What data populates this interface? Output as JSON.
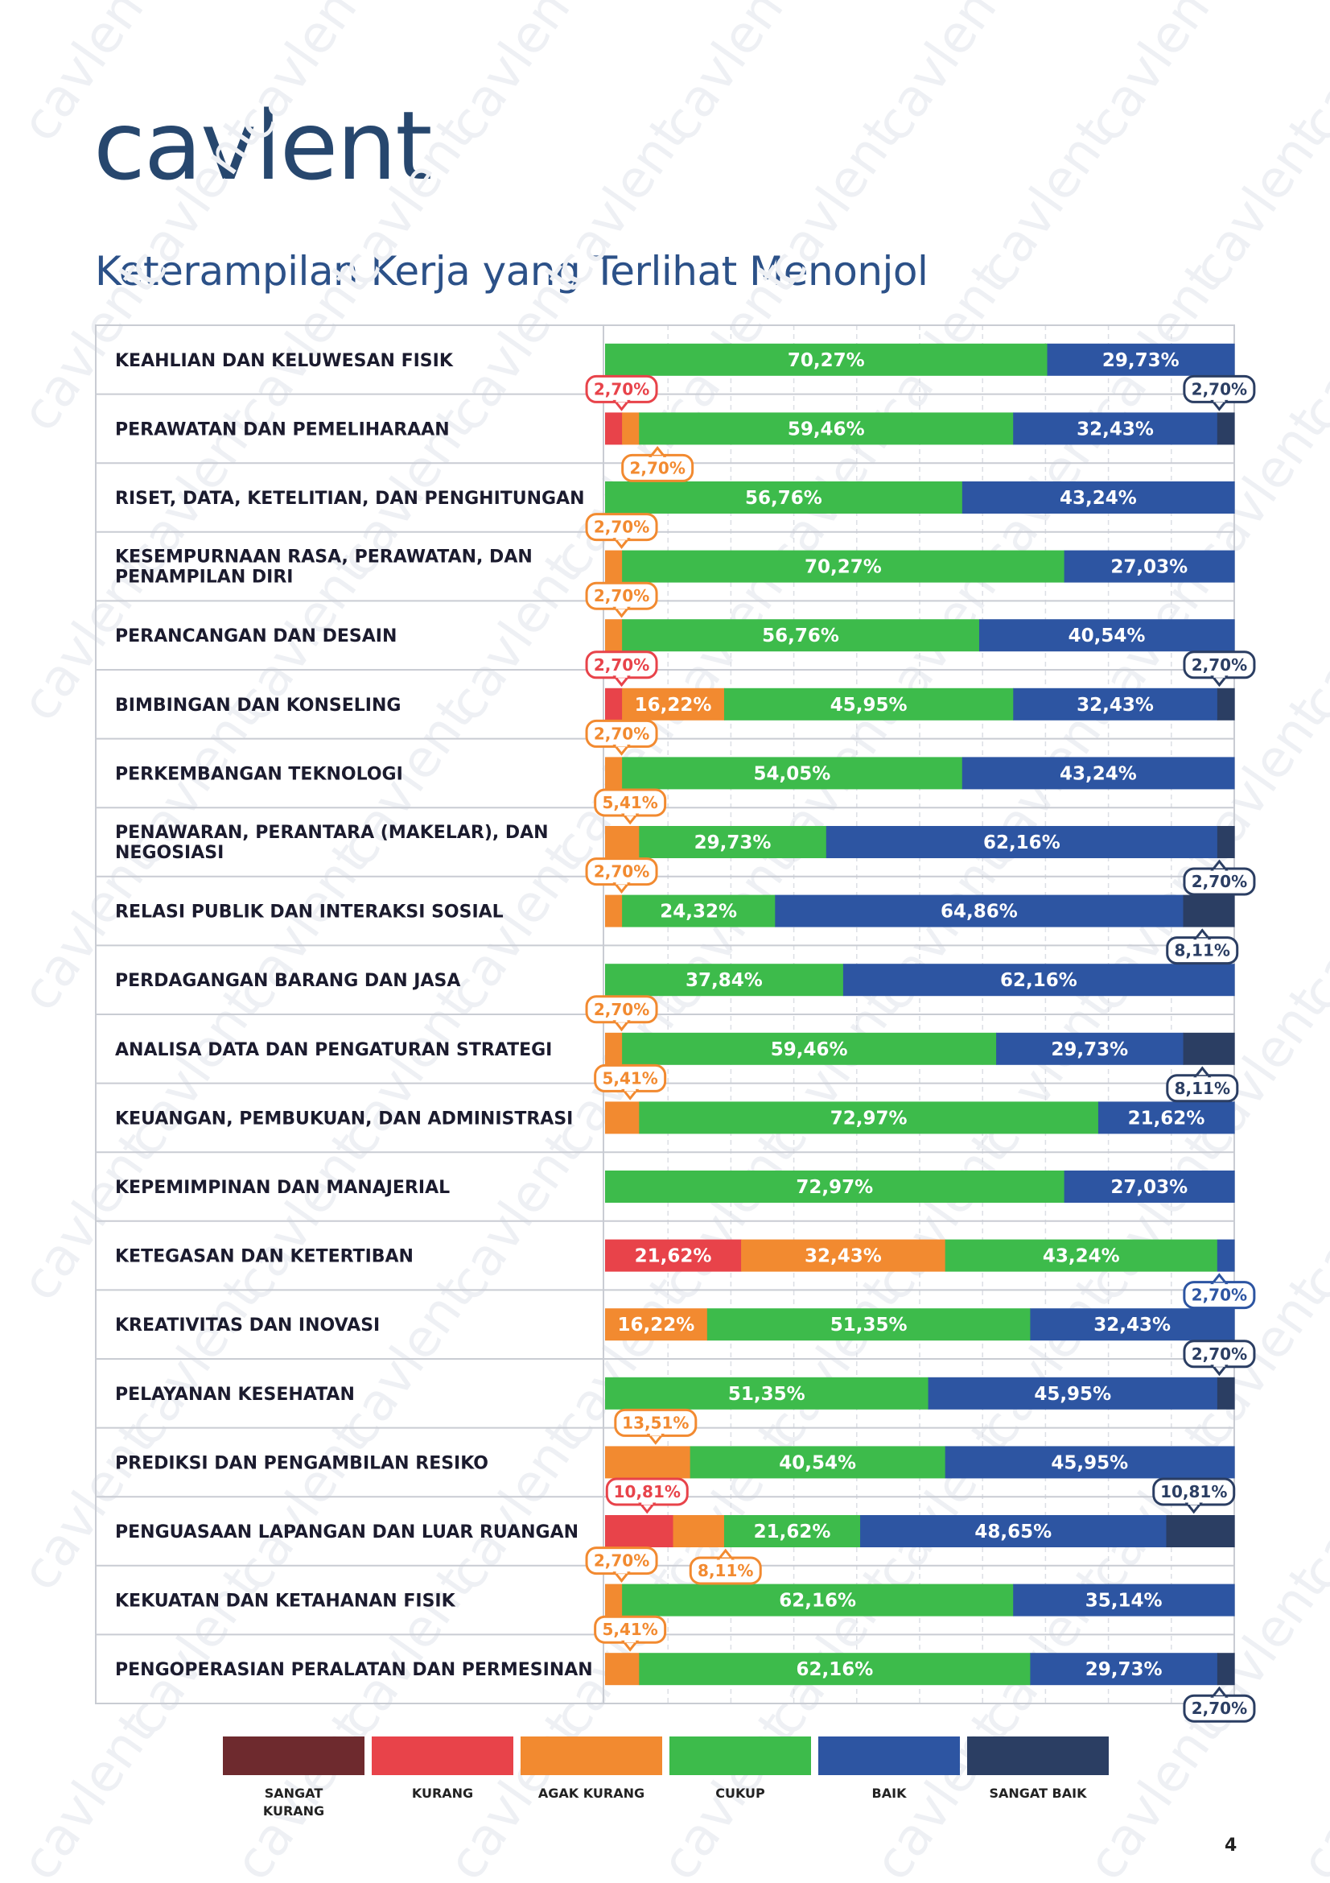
{
  "brand": "cavlent",
  "title": "Keterampilan Kerja yang Terlihat Menonjol",
  "page_number": "4",
  "colors": {
    "sangat_kurang": "#6e2a2e",
    "kurang": "#e8434a",
    "agak_kurang": "#f28a30",
    "cukup": "#3dbb4b",
    "baik": "#2d55a2",
    "sangat_baik": "#2b3e63"
  },
  "chart_data": {
    "type": "bar",
    "orientation": "horizontal",
    "stacked": true,
    "title": "Keterampilan Kerja yang Terlihat Menonjol",
    "xlim": [
      0,
      100
    ],
    "legend": [
      {
        "key": "sangat_kurang",
        "label": "SANGAT KURANG"
      },
      {
        "key": "kurang",
        "label": "KURANG"
      },
      {
        "key": "agak_kurang",
        "label": "AGAK KURANG"
      },
      {
        "key": "cukup",
        "label": "CUKUP"
      },
      {
        "key": "baik",
        "label": "BAIK"
      },
      {
        "key": "sangat_baik",
        "label": "SANGAT BAIK"
      }
    ],
    "categories": [
      {
        "label": "KEAHLIAN DAN KELUWESAN FISIK",
        "segments": [
          {
            "key": "cukup",
            "value": 70.27,
            "label": "70,27%"
          },
          {
            "key": "baik",
            "value": 29.73,
            "label": "29,73%"
          }
        ]
      },
      {
        "label": "PERAWATAN DAN PEMELIHARAAN",
        "segments": [
          {
            "key": "kurang",
            "value": 2.7,
            "label": "2,70%",
            "callout": "tl"
          },
          {
            "key": "agak_kurang",
            "value": 2.7,
            "label": "2,70%",
            "callout": "bl"
          },
          {
            "key": "cukup",
            "value": 59.46,
            "label": "59,46%"
          },
          {
            "key": "baik",
            "value": 32.43,
            "label": "32,43%"
          },
          {
            "key": "sangat_baik",
            "value": 2.7,
            "label": "2,70%",
            "callout": "tr"
          }
        ]
      },
      {
        "label": "RISET, DATA, KETELITIAN, DAN PENGHITUNGAN",
        "segments": [
          {
            "key": "cukup",
            "value": 56.76,
            "label": "56,76%"
          },
          {
            "key": "baik",
            "value": 43.24,
            "label": "43,24%"
          }
        ]
      },
      {
        "label": [
          "KESEMPURNAAN RASA, PERAWATAN, DAN",
          "PENAMPILAN DIRI"
        ],
        "segments": [
          {
            "key": "agak_kurang",
            "value": 2.7,
            "label": "2,70%",
            "callout": "tl"
          },
          {
            "key": "cukup",
            "value": 70.27,
            "label": "70,27%"
          },
          {
            "key": "baik",
            "value": 27.03,
            "label": "27,03%"
          }
        ]
      },
      {
        "label": "PERANCANGAN DAN DESAIN",
        "segments": [
          {
            "key": "agak_kurang",
            "value": 2.7,
            "label": "2,70%",
            "callout": "tl"
          },
          {
            "key": "cukup",
            "value": 56.76,
            "label": "56,76%"
          },
          {
            "key": "baik",
            "value": 40.54,
            "label": "40,54%"
          }
        ]
      },
      {
        "label": "BIMBINGAN DAN KONSELING",
        "segments": [
          {
            "key": "kurang",
            "value": 2.7,
            "label": "2,70%",
            "callout": "tl"
          },
          {
            "key": "agak_kurang",
            "value": 16.22,
            "label": "16,22%"
          },
          {
            "key": "cukup",
            "value": 45.95,
            "label": "45,95%"
          },
          {
            "key": "baik",
            "value": 32.43,
            "label": "32,43%"
          },
          {
            "key": "sangat_baik",
            "value": 2.7,
            "label": "2,70%",
            "callout": "tr"
          }
        ]
      },
      {
        "label": "PERKEMBANGAN TEKNOLOGI",
        "segments": [
          {
            "key": "agak_kurang",
            "value": 2.7,
            "label": "2,70%",
            "callout": "tl"
          },
          {
            "key": "cukup",
            "value": 54.05,
            "label": "54,05%"
          },
          {
            "key": "baik",
            "value": 43.24,
            "label": "43,24%"
          }
        ]
      },
      {
        "label": [
          "PENAWARAN, PERANTARA (MAKELAR), DAN",
          "NEGOSIASI"
        ],
        "segments": [
          {
            "key": "agak_kurang",
            "value": 5.41,
            "label": "5,41%",
            "callout": "tl"
          },
          {
            "key": "cukup",
            "value": 29.73,
            "label": "29,73%"
          },
          {
            "key": "baik",
            "value": 62.16,
            "label": "62,16%"
          },
          {
            "key": "sangat_baik",
            "value": 2.7,
            "label": "2,70%",
            "callout": "br"
          }
        ]
      },
      {
        "label": "RELASI PUBLIK DAN INTERAKSI SOSIAL",
        "segments": [
          {
            "key": "agak_kurang",
            "value": 2.7,
            "label": "2,70%",
            "callout": "tl"
          },
          {
            "key": "cukup",
            "value": 24.32,
            "label": "24,32%"
          },
          {
            "key": "baik",
            "value": 64.86,
            "label": "64,86%"
          },
          {
            "key": "sangat_baik",
            "value": 8.11,
            "label": "8,11%",
            "callout": "br"
          }
        ]
      },
      {
        "label": "PERDAGANGAN BARANG DAN JASA",
        "segments": [
          {
            "key": "cukup",
            "value": 37.84,
            "label": "37,84%"
          },
          {
            "key": "baik",
            "value": 62.16,
            "label": "62,16%"
          }
        ]
      },
      {
        "label": "ANALISA DATA DAN PENGATURAN STRATEGI",
        "segments": [
          {
            "key": "agak_kurang",
            "value": 2.7,
            "label": "2,70%",
            "callout": "tl"
          },
          {
            "key": "cukup",
            "value": 59.46,
            "label": "59,46%"
          },
          {
            "key": "baik",
            "value": 29.73,
            "label": "29,73%"
          },
          {
            "key": "sangat_baik",
            "value": 8.11,
            "label": "8,11%",
            "callout": "br"
          }
        ]
      },
      {
        "label": "KEUANGAN, PEMBUKUAN, DAN ADMINISTRASI",
        "segments": [
          {
            "key": "agak_kurang",
            "value": 5.41,
            "label": "5,41%",
            "callout": "tl"
          },
          {
            "key": "cukup",
            "value": 72.97,
            "label": "72,97%"
          },
          {
            "key": "baik",
            "value": 21.62,
            "label": "21,62%"
          }
        ]
      },
      {
        "label": "KEPEMIMPINAN DAN MANAJERIAL",
        "segments": [
          {
            "key": "cukup",
            "value": 72.97,
            "label": "72,97%"
          },
          {
            "key": "baik",
            "value": 27.03,
            "label": "27,03%"
          }
        ]
      },
      {
        "label": "KETEGASAN DAN KETERTIBAN",
        "segments": [
          {
            "key": "kurang",
            "value": 21.62,
            "label": "21,62%"
          },
          {
            "key": "agak_kurang",
            "value": 32.43,
            "label": "32,43%"
          },
          {
            "key": "cukup",
            "value": 43.24,
            "label": "43,24%"
          },
          {
            "key": "baik",
            "value": 2.7,
            "label": "2,70%",
            "callout": "br"
          }
        ]
      },
      {
        "label": "KREATIVITAS DAN INOVASI",
        "segments": [
          {
            "key": "agak_kurang",
            "value": 16.22,
            "label": "16,22%"
          },
          {
            "key": "cukup",
            "value": 51.35,
            "label": "51,35%"
          },
          {
            "key": "baik",
            "value": 32.43,
            "label": "32,43%"
          }
        ]
      },
      {
        "label": "PELAYANAN KESEHATAN",
        "segments": [
          {
            "key": "cukup",
            "value": 51.35,
            "label": "51,35%"
          },
          {
            "key": "baik",
            "value": 45.95,
            "label": "45,95%"
          },
          {
            "key": "sangat_baik",
            "value": 2.7,
            "label": "2,70%",
            "callout": "tr"
          }
        ]
      },
      {
        "label": "PREDIKSI DAN PENGAMBILAN RESIKO",
        "segments": [
          {
            "key": "agak_kurang",
            "value": 13.51,
            "label": "13,51%",
            "callout": "tl"
          },
          {
            "key": "cukup",
            "value": 40.54,
            "label": "40,54%"
          },
          {
            "key": "baik",
            "value": 45.95,
            "label": "45,95%"
          }
        ]
      },
      {
        "label": "PENGUASAAN LAPANGAN DAN LUAR RUANGAN",
        "segments": [
          {
            "key": "kurang",
            "value": 10.81,
            "label": "10,81%",
            "callout": "tl"
          },
          {
            "key": "agak_kurang",
            "value": 8.11,
            "label": "8,11%",
            "callout": "bl"
          },
          {
            "key": "cukup",
            "value": 21.62,
            "label": "21,62%"
          },
          {
            "key": "baik",
            "value": 48.65,
            "label": "48,65%"
          },
          {
            "key": "sangat_baik",
            "value": 10.81,
            "label": "10,81%",
            "callout": "tr"
          }
        ]
      },
      {
        "label": "KEKUATAN DAN KETAHANAN FISIK",
        "segments": [
          {
            "key": "agak_kurang",
            "value": 2.7,
            "label": "2,70%",
            "callout": "tl"
          },
          {
            "key": "cukup",
            "value": 62.16,
            "label": "62,16%"
          },
          {
            "key": "baik",
            "value": 35.14,
            "label": "35,14%"
          }
        ]
      },
      {
        "label": "PENGOPERASIAN PERALATAN DAN PERMESINAN",
        "segments": [
          {
            "key": "agak_kurang",
            "value": 5.41,
            "label": "5,41%",
            "callout": "tl"
          },
          {
            "key": "cukup",
            "value": 62.16,
            "label": "62,16%"
          },
          {
            "key": "baik",
            "value": 29.73,
            "label": "29,73%"
          },
          {
            "key": "sangat_baik",
            "value": 2.7,
            "label": "2,70%",
            "callout": "br"
          }
        ]
      }
    ]
  }
}
